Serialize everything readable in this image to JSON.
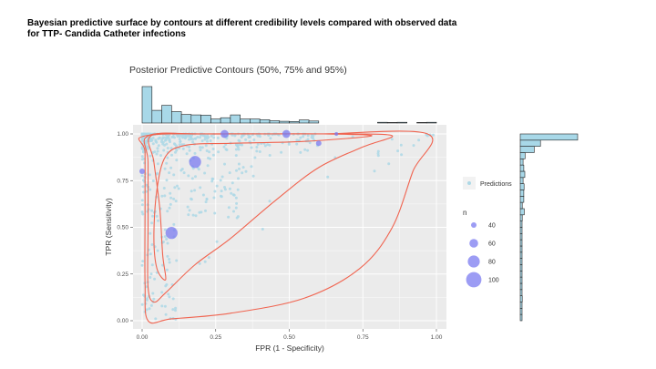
{
  "slide": {
    "title_line1": "Bayesian predictive surface by contours at different credibility levels compared with observed data",
    "title_line2": "for TTP- Candida Catheter infections"
  },
  "chart_data": {
    "type": "scatter",
    "title": "Posterior Predictive Contours (50%, 75% and 95%)",
    "xlabel": "FPR (1 - Specificity)",
    "ylabel": "TPR (Sensitivity)",
    "xlim": [
      0,
      1
    ],
    "ylim": [
      0,
      1
    ],
    "x_ticks": [
      0,
      0.25,
      0.5,
      0.75,
      1
    ],
    "x_tick_labels": [
      "0.00",
      "0.25",
      "0.50",
      "0.75",
      "1.00"
    ],
    "y_ticks": [
      0,
      0.25,
      0.5,
      0.75,
      1
    ],
    "y_tick_labels": [
      "0.00",
      "0.25",
      "0.50",
      "0.75",
      "1.00"
    ],
    "grid": true,
    "legend_position": "right",
    "colors": {
      "panel": "#ebebeb",
      "grid": "#ffffff",
      "predictions": "#add8e6",
      "observed": "#7b7bf0",
      "contour": "#f06450",
      "hist_fill": "#a8d8e8"
    },
    "legend": {
      "predictions_label": "Predictions",
      "size_title": "n",
      "size_entries": [
        40,
        60,
        80,
        100
      ]
    },
    "observed": [
      {
        "x": 0.18,
        "y": 0.85,
        "n": 80
      },
      {
        "x": 0.1,
        "y": 0.47,
        "n": 80
      },
      {
        "x": 0.0,
        "y": 0.8,
        "n": 40
      },
      {
        "x": 0.28,
        "y": 1.0,
        "n": 55
      },
      {
        "x": 0.49,
        "y": 1.0,
        "n": 55
      },
      {
        "x": 0.6,
        "y": 0.95,
        "n": 40
      },
      {
        "x": 0.66,
        "y": 1.0,
        "n": 30
      }
    ],
    "contours": [
      {
        "level": "50%",
        "points": [
          [
            0.03,
            0.99
          ],
          [
            0.18,
            1.0
          ],
          [
            0.4,
            1.0
          ],
          [
            0.62,
            1.0
          ],
          [
            0.78,
            0.99
          ],
          [
            0.55,
            0.96
          ],
          [
            0.3,
            0.95
          ],
          [
            0.15,
            0.94
          ],
          [
            0.08,
            0.88
          ],
          [
            0.05,
            0.7
          ],
          [
            0.04,
            0.45
          ],
          [
            0.05,
            0.28
          ],
          [
            0.08,
            0.22
          ],
          [
            0.07,
            0.35
          ],
          [
            0.06,
            0.6
          ],
          [
            0.04,
            0.85
          ]
        ]
      },
      {
        "level": "75%",
        "points": [
          [
            0.02,
            0.99
          ],
          [
            0.2,
            1.0
          ],
          [
            0.45,
            1.0
          ],
          [
            0.7,
            1.0
          ],
          [
            0.85,
            0.99
          ],
          [
            0.75,
            0.93
          ],
          [
            0.6,
            0.82
          ],
          [
            0.45,
            0.64
          ],
          [
            0.3,
            0.44
          ],
          [
            0.18,
            0.3
          ],
          [
            0.08,
            0.15
          ],
          [
            0.04,
            0.1
          ],
          [
            0.02,
            0.18
          ],
          [
            0.02,
            0.5
          ],
          [
            0.02,
            0.85
          ]
        ]
      },
      {
        "level": "95%",
        "points": [
          [
            0.01,
            0.99
          ],
          [
            0.3,
            1.0
          ],
          [
            0.6,
            1.0
          ],
          [
            0.97,
            1.0
          ],
          [
            0.92,
            0.8
          ],
          [
            0.85,
            0.5
          ],
          [
            0.74,
            0.28
          ],
          [
            0.55,
            0.12
          ],
          [
            0.3,
            0.04
          ],
          [
            0.1,
            0.01
          ],
          [
            0.02,
            0.0
          ],
          [
            0.01,
            0.2
          ],
          [
            0.01,
            0.6
          ],
          [
            0.01,
            0.9
          ]
        ]
      }
    ]
  }
}
